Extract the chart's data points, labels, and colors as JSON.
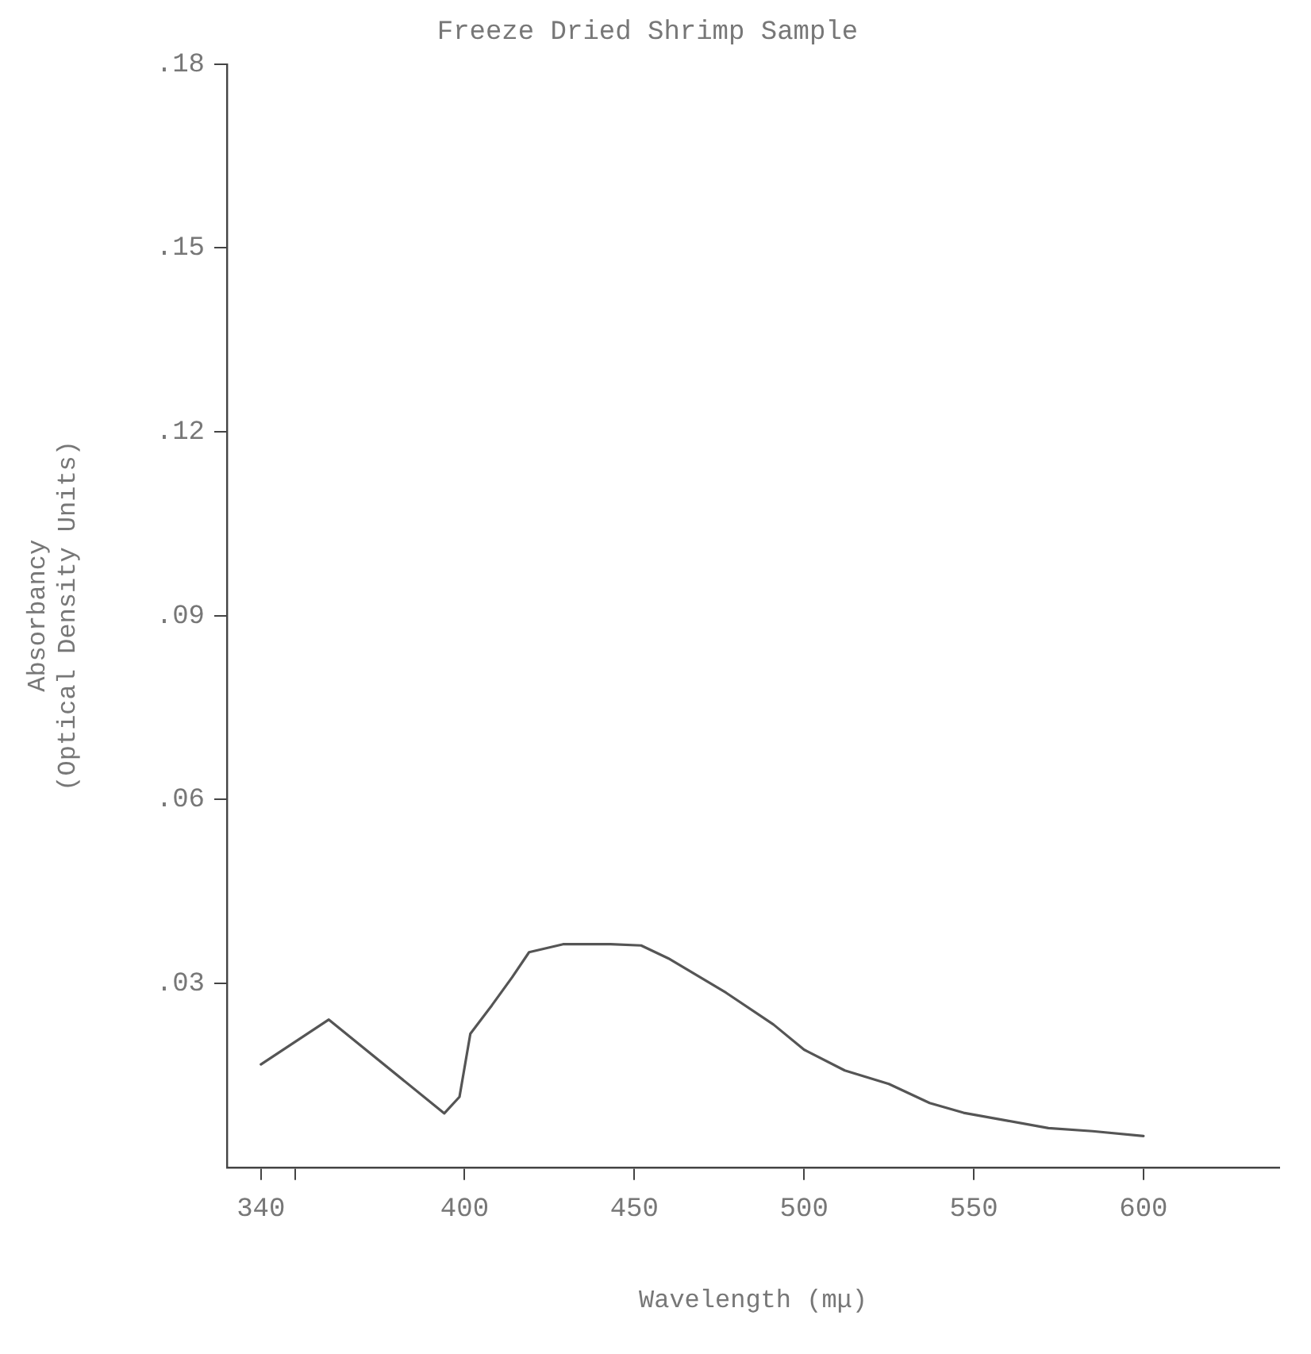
{
  "chart_data": {
    "type": "line",
    "title": "Freeze Dried Shrimp Sample",
    "xlabel": "Wavelength (mμ)",
    "ylabel": "Absorbancy\n(Optical Density Units)",
    "x": [
      340,
      360,
      394,
      398.5,
      401.7,
      408,
      414,
      419,
      429,
      443,
      452,
      460,
      477,
      491,
      500,
      512,
      525,
      537,
      547,
      560,
      572,
      585,
      600
    ],
    "series": [
      {
        "color": "#555555",
        "values": [
          0.0168,
          0.0241,
          0.0088,
          0.0115,
          0.0218,
          0.0264,
          0.031,
          0.0351,
          0.0364,
          0.0364,
          0.0362,
          0.0341,
          0.0285,
          0.0233,
          0.0192,
          0.0158,
          0.0136,
          0.0105,
          0.0089,
          0.0076,
          0.0064,
          0.0059,
          0.0051
        ]
      }
    ],
    "xlim": [
      330,
      640
    ],
    "xticks": [
      340,
      {
        "value": 350,
        "label": null
      },
      400,
      450,
      500,
      550,
      600
    ],
    "ylim": [
      0,
      0.18
    ],
    "yticks": [
      {
        "value": 0.03,
        "label": ".03"
      },
      {
        "value": 0.06,
        "label": ".06"
      },
      {
        "value": 0.09,
        "label": ".09"
      },
      {
        "value": 0.12,
        "label": ".12"
      },
      {
        "value": 0.15,
        "label": ".15"
      },
      {
        "value": 0.18,
        "label": ".18"
      }
    ],
    "grid": false,
    "legend": false,
    "marker": "none",
    "line_style": "solid"
  }
}
